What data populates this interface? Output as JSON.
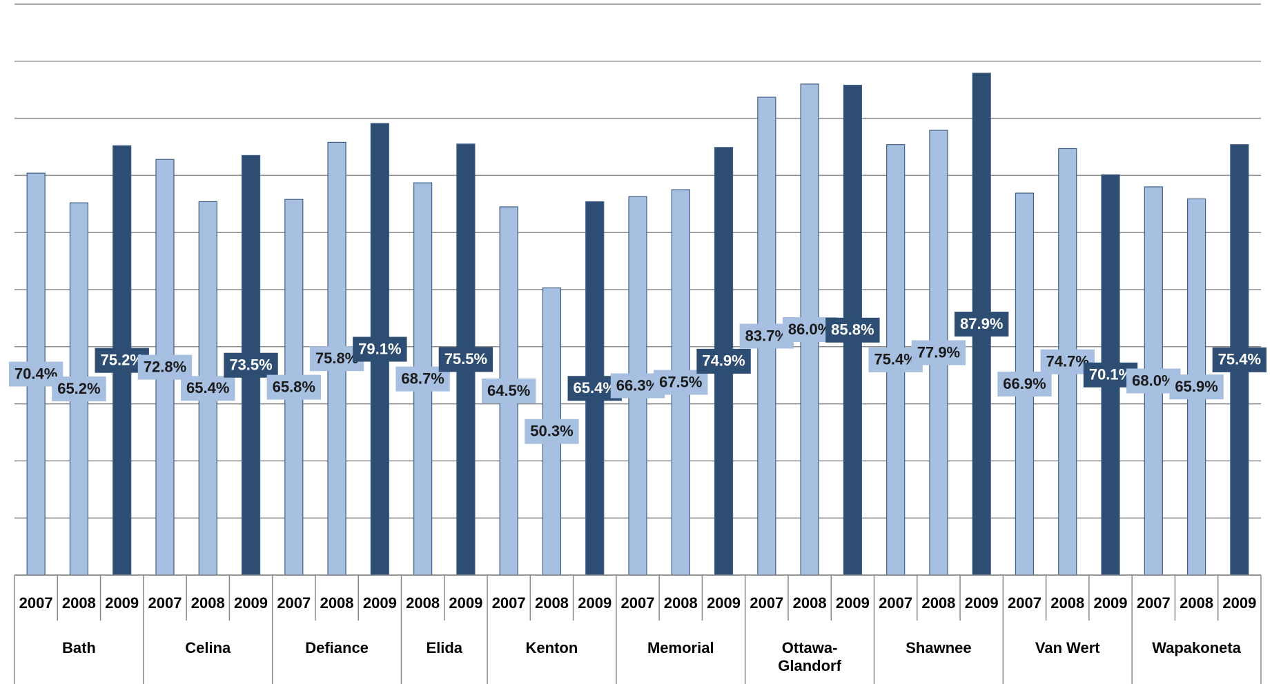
{
  "chart_data": {
    "type": "grouped-bar",
    "ylim": [
      0,
      100
    ],
    "yticks": [
      0,
      10,
      20,
      30,
      40,
      50,
      60,
      70,
      80,
      90,
      100
    ],
    "grid": true,
    "ytick_labels": false,
    "groups": [
      {
        "name": "Bath",
        "categories": [
          "2007",
          "2008",
          "2009"
        ],
        "values": [
          70.4,
          65.2,
          75.2
        ],
        "value_labels": [
          "70.4%",
          "65.2%",
          "75.2%"
        ],
        "colors": [
          "#a7bfe0",
          "#a7bfe0",
          "#2d4d73"
        ]
      },
      {
        "name": "Celina",
        "categories": [
          "2007",
          "2008",
          "2009"
        ],
        "values": [
          72.8,
          65.4,
          73.5
        ],
        "value_labels": [
          "72.8%",
          "65.4%",
          "73.5%"
        ],
        "colors": [
          "#a7bfe0",
          "#a7bfe0",
          "#2d4d73"
        ]
      },
      {
        "name": "Defiance",
        "categories": [
          "2007",
          "2008",
          "2009"
        ],
        "values": [
          65.8,
          75.8,
          79.1
        ],
        "value_labels": [
          "65.8%",
          "75.8%",
          "79.1%"
        ],
        "colors": [
          "#a7bfe0",
          "#a7bfe0",
          "#2d4d73"
        ]
      },
      {
        "name": "Elida",
        "categories": [
          "2008",
          "2009"
        ],
        "values": [
          68.7,
          75.5
        ],
        "value_labels": [
          "68.7%",
          "75.5%"
        ],
        "colors": [
          "#a7bfe0",
          "#2d4d73"
        ]
      },
      {
        "name": "Kenton",
        "categories": [
          "2007",
          "2008",
          "2009"
        ],
        "values": [
          64.5,
          50.3,
          65.4
        ],
        "value_labels": [
          "64.5%",
          "50.3%",
          "65.4%"
        ],
        "colors": [
          "#a7bfe0",
          "#a7bfe0",
          "#2d4d73"
        ]
      },
      {
        "name": "Memorial",
        "categories": [
          "2007",
          "2008",
          "2009"
        ],
        "values": [
          66.3,
          67.5,
          74.9
        ],
        "value_labels": [
          "66.3%",
          "67.5%",
          "74.9%"
        ],
        "colors": [
          "#a7bfe0",
          "#a7bfe0",
          "#2d4d73"
        ]
      },
      {
        "name": "Ottawa-Glandorf",
        "categories": [
          "2007",
          "2008",
          "2009"
        ],
        "values": [
          83.7,
          86.0,
          85.8
        ],
        "value_labels": [
          "83.7%",
          "86.0%",
          "85.8%"
        ],
        "colors": [
          "#a7bfe0",
          "#a7bfe0",
          "#2d4d73"
        ]
      },
      {
        "name": "Shawnee",
        "categories": [
          "2007",
          "2008",
          "2009"
        ],
        "values": [
          75.4,
          77.9,
          87.9
        ],
        "value_labels": [
          "75.4%",
          "77.9%",
          "87.9%"
        ],
        "colors": [
          "#a7bfe0",
          "#a7bfe0",
          "#2d4d73"
        ]
      },
      {
        "name": "Van Wert",
        "categories": [
          "2007",
          "2008",
          "2009"
        ],
        "values": [
          66.9,
          74.7,
          70.1
        ],
        "value_labels": [
          "66.9%",
          "74.7%",
          "70.1%"
        ],
        "colors": [
          "#a7bfe0",
          "#a7bfe0",
          "#2d4d73"
        ]
      },
      {
        "name": "Wapakoneta",
        "categories": [
          "2007",
          "2008",
          "2009"
        ],
        "values": [
          68.0,
          65.9,
          75.4
        ],
        "value_labels": [
          "68.0%",
          "65.9%",
          "75.4%"
        ],
        "colors": [
          "#a7bfe0",
          "#a7bfe0",
          "#2d4d73"
        ]
      }
    ]
  }
}
